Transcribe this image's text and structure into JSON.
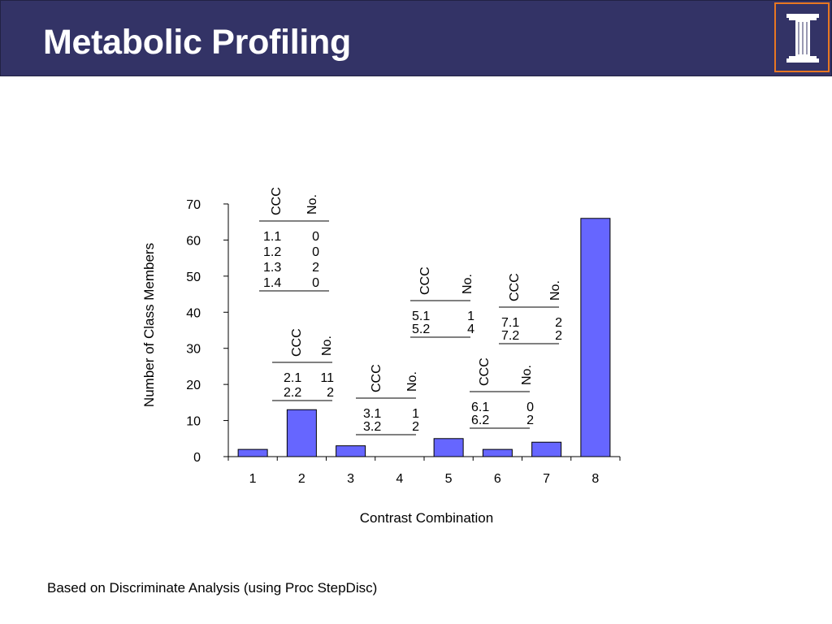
{
  "slide": {
    "title": "Metabolic Profiling",
    "logo_icon": "illinois-i-logo",
    "footnote": "Based on Discriminate Analysis (using Proc StepDisc)"
  },
  "colors": {
    "title_bar": "#333366",
    "logo_border": "#e87722",
    "bar_fill": "#6666ff"
  },
  "chart_data": {
    "type": "bar",
    "xlabel": "Contrast Combination",
    "ylabel": "Number of Class Members",
    "ylim": [
      0,
      70
    ],
    "yticks": [
      0,
      10,
      20,
      30,
      40,
      50,
      60,
      70
    ],
    "categories": [
      "1",
      "2",
      "3",
      "4",
      "5",
      "6",
      "7",
      "8"
    ],
    "values": [
      2,
      13,
      3,
      0,
      5,
      2,
      4,
      66
    ],
    "grid": false,
    "annotations": [
      {
        "category": "1",
        "headers": [
          "CCC",
          "No."
        ],
        "rows": [
          [
            "1.1",
            "0"
          ],
          [
            "1.2",
            "0"
          ],
          [
            "1.3",
            "2"
          ],
          [
            "1.4",
            "0"
          ]
        ]
      },
      {
        "category": "2",
        "headers": [
          "CCC",
          "No."
        ],
        "rows": [
          [
            "2.1",
            "11"
          ],
          [
            "2.2",
            "2"
          ]
        ]
      },
      {
        "category": "3",
        "headers": [
          "CCC",
          "No."
        ],
        "rows": [
          [
            "3.1",
            "1"
          ],
          [
            "3.2",
            "2"
          ]
        ]
      },
      {
        "category": "5",
        "headers": [
          "CCC",
          "No."
        ],
        "rows": [
          [
            "5.1",
            "1"
          ],
          [
            "5.2",
            "4"
          ]
        ]
      },
      {
        "category": "6",
        "headers": [
          "CCC",
          "No."
        ],
        "rows": [
          [
            "6.1",
            "0"
          ],
          [
            "6.2",
            "2"
          ]
        ]
      },
      {
        "category": "7",
        "headers": [
          "CCC",
          "No."
        ],
        "rows": [
          [
            "7.1",
            "2"
          ],
          [
            "7.2",
            "2"
          ]
        ]
      }
    ]
  }
}
